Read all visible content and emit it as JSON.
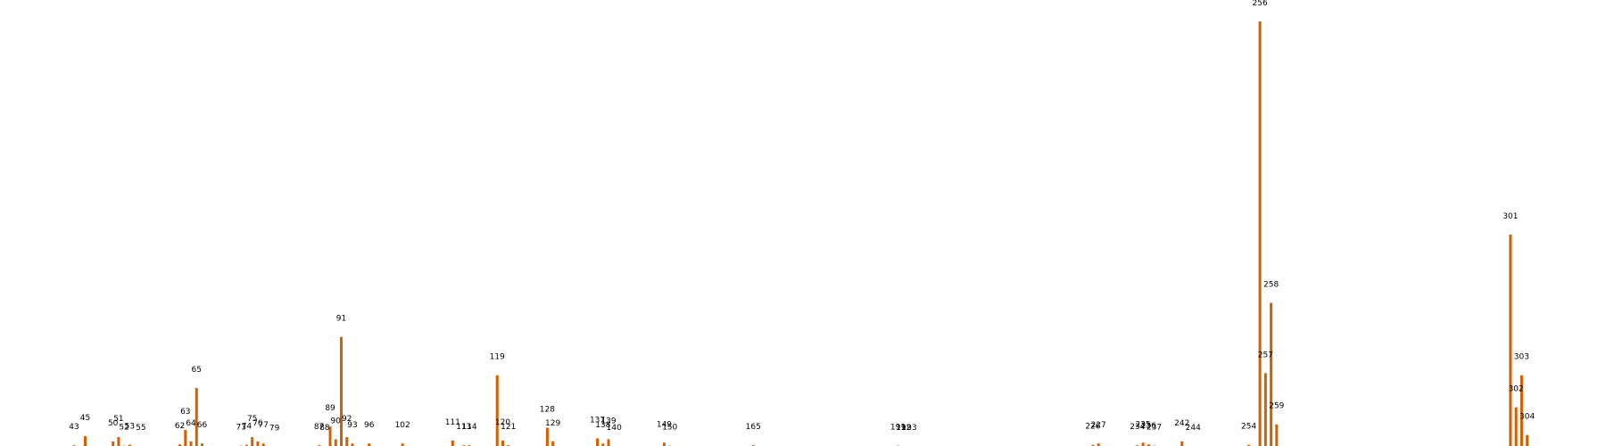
{
  "chart_data": {
    "type": "bar",
    "title": "",
    "xlabel": "",
    "ylabel": "",
    "axes_visible": false,
    "grid": false,
    "xlim": [
      30,
      315
    ],
    "ylim": [
      0,
      100
    ],
    "bar_color": "#d55e00",
    "x": [
      43,
      45,
      50,
      51,
      52,
      53,
      55,
      62,
      63,
      64,
      65,
      66,
      73,
      74,
      75,
      76,
      77,
      79,
      87,
      88,
      89,
      90,
      91,
      92,
      93,
      96,
      102,
      111,
      113,
      114,
      119,
      120,
      121,
      128,
      129,
      137,
      138,
      139,
      140,
      149,
      150,
      165,
      191,
      192,
      193,
      226,
      227,
      234,
      235,
      236,
      237,
      242,
      244,
      254,
      256,
      257,
      258,
      259,
      301,
      302,
      303,
      304
    ],
    "labels": [
      "43",
      "45",
      "50",
      "51",
      "52",
      "53",
      "55",
      "62",
      "63",
      "64",
      "65",
      "66",
      "73",
      "74",
      "75",
      "76",
      "77",
      "79",
      "87",
      "88",
      "89",
      "90",
      "91",
      "92",
      "93",
      "96",
      "102",
      "111",
      "113",
      "114",
      "119",
      "120",
      "121",
      "128",
      "129",
      "137",
      "138",
      "139",
      "140",
      "149",
      "150",
      "165",
      "191",
      "192",
      "193",
      "226",
      "227",
      "234",
      "235",
      "236",
      "237",
      "242",
      "244",
      "254",
      "256",
      "257",
      "258",
      "259",
      "301",
      "302",
      "303",
      "304"
    ],
    "values": [
      0.6,
      2.7,
      1.5,
      2.5,
      0.5,
      0.7,
      0.4,
      0.8,
      4.2,
      1.5,
      14.0,
      1.0,
      0.5,
      0.7,
      2.5,
      1.5,
      1.0,
      0.3,
      0.6,
      0.4,
      5.0,
      2.0,
      26.0,
      2.5,
      1.0,
      1.0,
      1.0,
      1.7,
      0.6,
      0.6,
      17.0,
      1.7,
      0.6,
      4.7,
      1.5,
      2.2,
      1.0,
      2.0,
      0.4,
      1.2,
      0.5,
      0.6,
      0.5,
      0.4,
      0.4,
      0.7,
      1.0,
      0.6,
      1.2,
      0.8,
      0.5,
      1.5,
      0.4,
      0.7,
      100.0,
      17.5,
      34.0,
      5.5,
      50.0,
      9.5,
      17.0,
      3.0
    ]
  }
}
